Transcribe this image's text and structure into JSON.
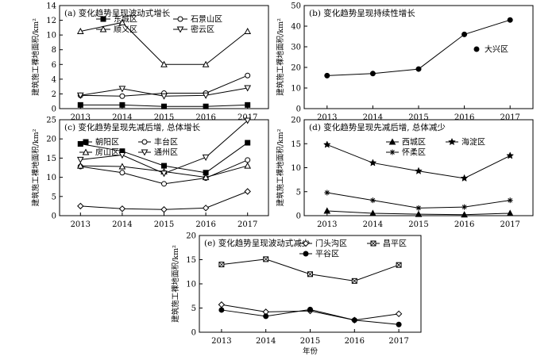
{
  "figure": {
    "y_axis_label": "建筑施工裸地面积/km²",
    "x_axis_label": "年份"
  },
  "chart_data": [
    {
      "id": "a",
      "type": "line",
      "title": "(a) 变化趋势呈现波动式增长",
      "ylabel": "建筑施工裸地面积/km²",
      "x": [
        2013,
        2014,
        2015,
        2016,
        2017
      ],
      "xlim": [
        2012.5,
        2017.5
      ],
      "ylim": [
        0,
        14
      ],
      "yticks": [
        0,
        2,
        4,
        6,
        8,
        10,
        12,
        14
      ],
      "series": [
        {
          "name": "东城区",
          "marker": "square-filled",
          "values": [
            0.5,
            0.5,
            0.3,
            0.3,
            0.5
          ]
        },
        {
          "name": "石景山区",
          "marker": "circle-open",
          "values": [
            1.8,
            1.7,
            2.1,
            2.1,
            4.5
          ]
        },
        {
          "name": "顺义区",
          "marker": "triangle-up-open",
          "values": [
            10.5,
            11.7,
            6.0,
            6.0,
            10.5
          ]
        },
        {
          "name": "密云区",
          "marker": "triangle-down-open",
          "values": [
            1.8,
            2.7,
            1.7,
            1.8,
            2.8
          ]
        }
      ]
    },
    {
      "id": "b",
      "type": "line",
      "title": "(b) 变化趋势呈现持续性增长",
      "ylabel": "建筑施工裸地面积/km²",
      "x": [
        2013,
        2014,
        2015,
        2016,
        2017
      ],
      "xlim": [
        2012.5,
        2017.5
      ],
      "ylim": [
        0,
        50
      ],
      "yticks": [
        0,
        10,
        20,
        30,
        40,
        50
      ],
      "series": [
        {
          "name": "大兴区",
          "marker": "circle-filled",
          "values": [
            16.0,
            17.0,
            19.2,
            36.0,
            43.0
          ]
        }
      ]
    },
    {
      "id": "c",
      "type": "line",
      "title": "(c) 变化趋势呈现先减后增, 总体增长",
      "ylabel": "建筑施工裸地面积/km²",
      "x": [
        2013,
        2014,
        2015,
        2016,
        2017
      ],
      "xlim": [
        2012.5,
        2017.5
      ],
      "ylim": [
        0,
        25
      ],
      "yticks": [
        0,
        5,
        10,
        15,
        20,
        25
      ],
      "series": [
        {
          "name": "朝阳区",
          "marker": "square-filled",
          "values": [
            18.7,
            16.8,
            13.0,
            11.2,
            19.0
          ]
        },
        {
          "name": "丰台区",
          "marker": "circle-open",
          "values": [
            12.8,
            11.2,
            8.3,
            9.8,
            14.5
          ]
        },
        {
          "name": "房山区",
          "marker": "triangle-up-open",
          "values": [
            13.0,
            12.8,
            11.5,
            10.0,
            13.0
          ]
        },
        {
          "name": "通州区",
          "marker": "triangle-down-open",
          "values": [
            14.6,
            15.8,
            11.0,
            15.2,
            24.8
          ]
        },
        {
          "name": "",
          "marker": "diamond-open",
          "values": [
            2.5,
            1.8,
            1.6,
            2.0,
            6.3
          ]
        }
      ]
    },
    {
      "id": "d",
      "type": "line",
      "title": "(d) 变化趋势呈现先减后增, 总体减少",
      "ylabel": "建筑施工裸地面积/km²",
      "x": [
        2013,
        2014,
        2015,
        2016,
        2017
      ],
      "xlim": [
        2012.5,
        2017.5
      ],
      "ylim": [
        0,
        20
      ],
      "yticks": [
        0,
        5,
        10,
        15,
        20
      ],
      "series": [
        {
          "name": "西城区",
          "marker": "triangle-up-filled",
          "values": [
            1.0,
            0.5,
            0.3,
            0.2,
            0.5
          ]
        },
        {
          "name": "海淀区",
          "marker": "star-filled",
          "values": [
            14.8,
            11.0,
            9.3,
            7.8,
            12.5
          ]
        },
        {
          "name": "怀柔区",
          "marker": "asterisk",
          "values": [
            4.8,
            3.2,
            1.6,
            1.8,
            3.2
          ]
        }
      ]
    },
    {
      "id": "e",
      "type": "line",
      "title": "(e) 变化趋势呈现波动式减少",
      "ylabel": "建筑施工裸地面积/km²",
      "xlabel": "年份",
      "x": [
        2013,
        2014,
        2015,
        2016,
        2017
      ],
      "xlim": [
        2012.5,
        2017.5
      ],
      "ylim": [
        0,
        20
      ],
      "yticks": [
        0,
        5,
        10,
        15,
        20
      ],
      "series": [
        {
          "name": "门头沟区",
          "marker": "diamond-open",
          "values": [
            5.7,
            4.2,
            4.4,
            2.5,
            3.8
          ]
        },
        {
          "name": "昌平区",
          "marker": "boxed-x",
          "values": [
            14.0,
            15.1,
            12.0,
            10.6,
            13.9
          ]
        },
        {
          "name": "平谷区",
          "marker": "circle-filled",
          "values": [
            4.6,
            3.3,
            4.7,
            2.5,
            1.6
          ]
        }
      ]
    }
  ]
}
